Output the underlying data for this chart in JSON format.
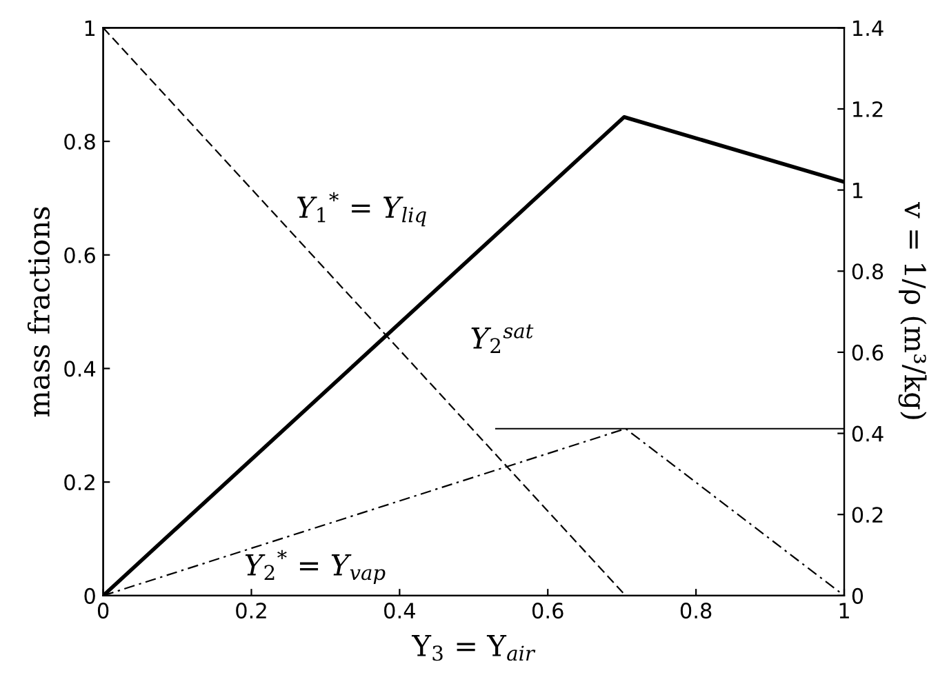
{
  "chart_data": {
    "type": "line",
    "xlabel": "Y$_{3}$ = Y$_{air}$",
    "ylabel": "mass fractions",
    "y2label": "v = 1/ρ (m³/kg)",
    "series": [
      {
        "color": "#000000",
        "line_style": "dashed",
        "x": [
          0,
          0.705
        ],
        "values": [
          1,
          0
        ]
      },
      {
        "color": "#000000",
        "line_style": "dashdot",
        "x": [
          0,
          0.705,
          1
        ],
        "values": [
          0,
          0.294,
          0
        ]
      },
      {
        "color": "#000000",
        "line_style": "solid",
        "x": [
          0.53,
          1
        ],
        "values": [
          0.294,
          0.294
        ]
      },
      {
        "color": "#000000",
        "line_style": "solid",
        "axis": "y2",
        "x": [
          0,
          0.703,
          1
        ],
        "values": [
          0,
          1.18,
          1.02
        ]
      }
    ],
    "annotations": [
      "Y$_{1}$$^{*}$ = Y$_{liq}$",
      "Y$_{2}$$^{sat}$",
      "Y$_{2}$$^{*}$ = Y$_{vap}$"
    ],
    "xlim": [
      0,
      1
    ],
    "xticks": [
      0,
      0.2,
      0.4,
      0.6,
      0.8,
      1
    ],
    "ylim": [
      0,
      1
    ],
    "yticks": [
      0,
      0.2,
      0.4,
      0.6,
      0.8,
      1
    ],
    "y2lim": [
      0,
      1.4
    ],
    "y2ticks": [
      0,
      0.2,
      0.4,
      0.6,
      0.8,
      1,
      1.2,
      1.4
    ],
    "grid": false
  }
}
